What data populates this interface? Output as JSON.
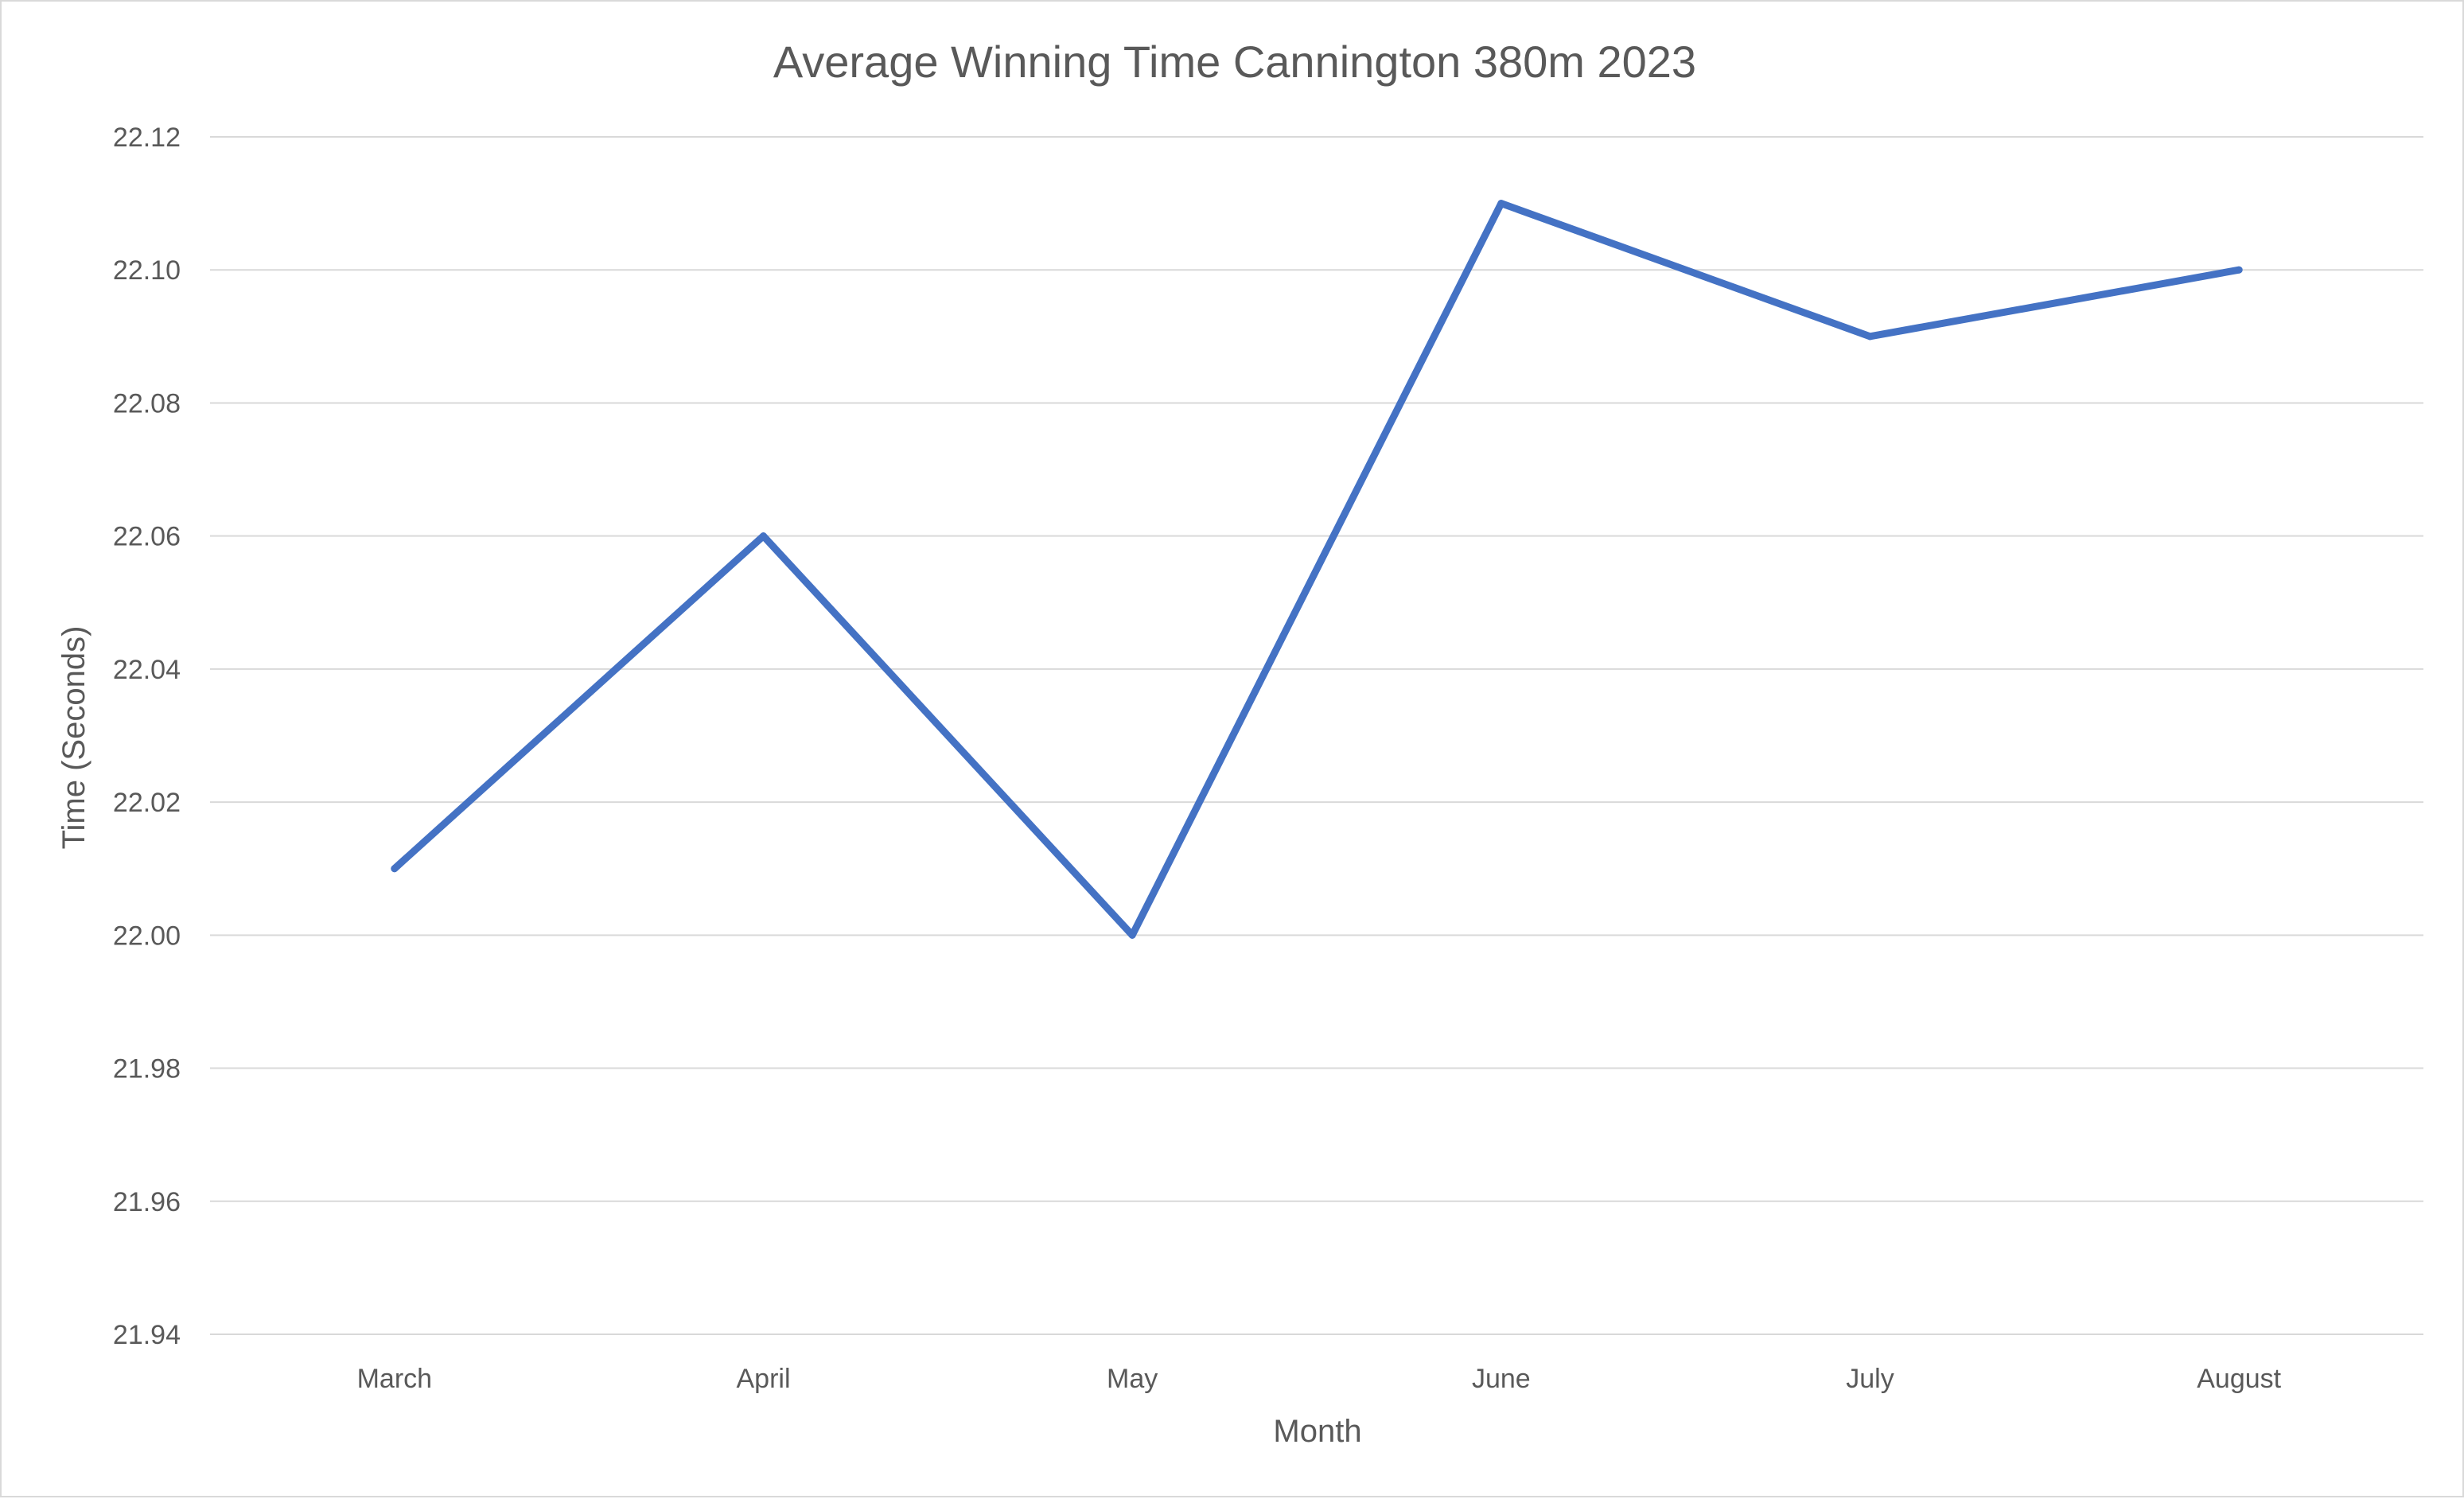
{
  "chart_data": {
    "type": "line",
    "title": "Average Winning Time Cannington 380m 2023",
    "xlabel": "Month",
    "ylabel": "Time (Seconds)",
    "categories": [
      "March",
      "April",
      "May",
      "June",
      "July",
      "August"
    ],
    "series": [
      {
        "name": "Average Winning Time",
        "values": [
          22.01,
          22.06,
          22.0,
          22.11,
          22.09,
          22.1
        ],
        "color": "#4472c4"
      }
    ],
    "ylim": [
      21.94,
      22.12
    ],
    "yticks": [
      "21.94",
      "21.96",
      "21.98",
      "22.00",
      "22.02",
      "22.04",
      "22.06",
      "22.08",
      "22.10",
      "22.12"
    ],
    "grid": true,
    "legend": "none"
  }
}
